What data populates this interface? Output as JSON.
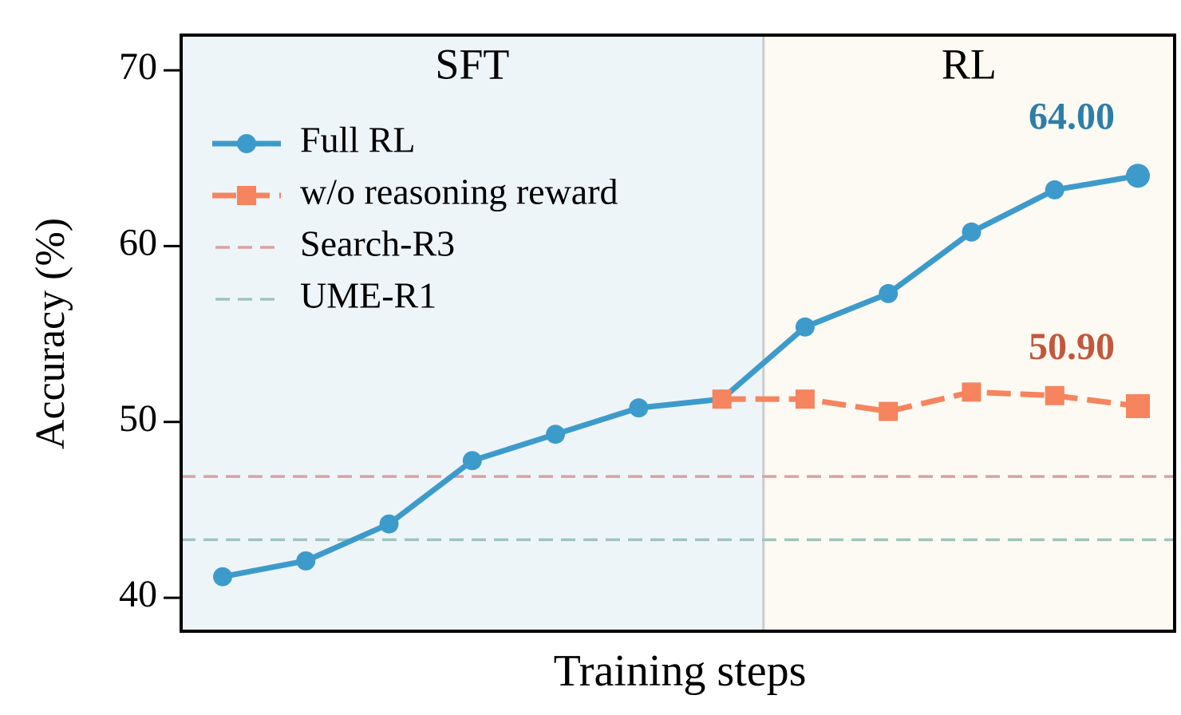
{
  "chart_data": {
    "type": "line",
    "y_label": "Accuracy (%)",
    "x_label": "Training steps",
    "regions": [
      {
        "text": "SFT",
        "color": "#eef5f9"
      },
      {
        "text": "RL",
        "color": "#fdfaf3"
      }
    ],
    "categories": [
      null,
      null,
      null,
      null,
      null,
      null,
      null,
      null,
      null,
      null,
      null,
      null
    ],
    "series": [
      {
        "name": "Full RL",
        "color": "#3d9bcb",
        "marker": "circle",
        "dash": false,
        "label_color": "#2e7ea8",
        "values": [
          41.2,
          42.1,
          44.2,
          47.8,
          49.3,
          50.8,
          51.3,
          55.4,
          57.3,
          60.8,
          63.2,
          64.0
        ],
        "value_labels": [
          null,
          null,
          null,
          null,
          null,
          null,
          null,
          null,
          null,
          null,
          null,
          "64.00"
        ]
      },
      {
        "name": "w/o reasoning reward",
        "color": "#f5845f",
        "marker": "square",
        "dash": true,
        "label_color": "#c1583c",
        "values": [
          null,
          null,
          null,
          null,
          null,
          null,
          51.3,
          51.3,
          50.6,
          51.7,
          51.5,
          50.9
        ],
        "value_labels": [
          null,
          null,
          null,
          null,
          null,
          null,
          null,
          null,
          null,
          null,
          null,
          "50.90"
        ]
      }
    ],
    "reference_lines": [
      {
        "name": "Search-R3",
        "color": "#d9a2a2",
        "value": 46.9
      },
      {
        "name": "UME-R1",
        "color": "#9dc5bd",
        "value": 43.3
      }
    ],
    "ylim": [
      38.1,
      72
    ],
    "yticks": [
      40,
      50,
      60,
      70
    ],
    "legend": "upper left"
  }
}
